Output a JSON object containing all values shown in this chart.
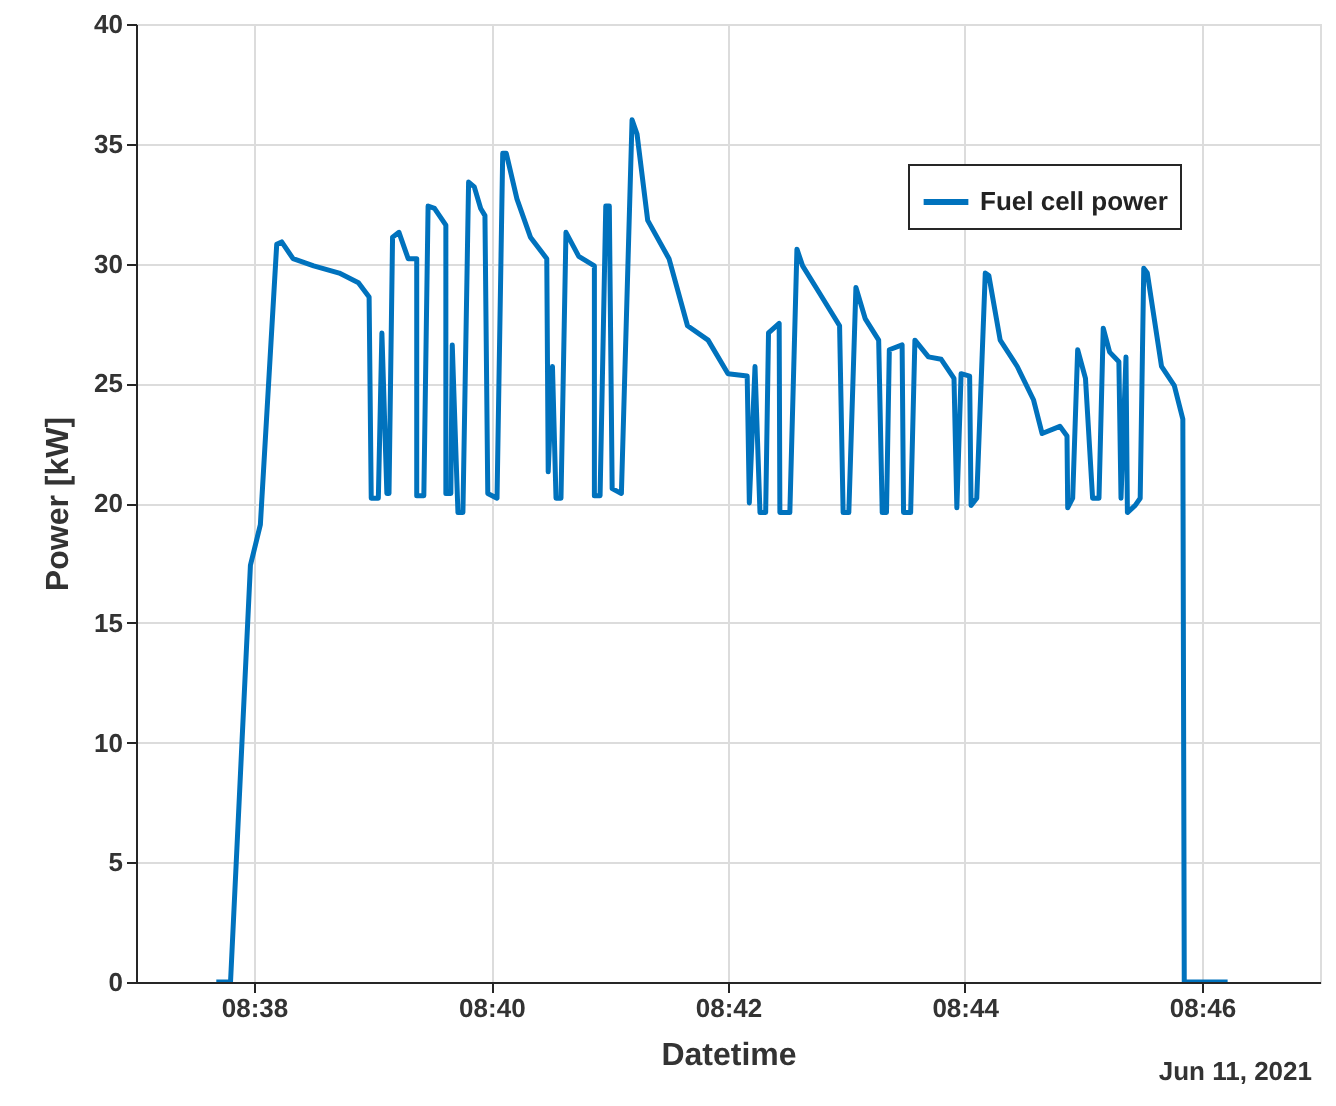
{
  "chart_data": {
    "type": "line",
    "xlabel": "Datetime",
    "ylabel": "Power [kW]",
    "annotations": [
      "Jun 11, 2021"
    ],
    "xlim": [
      8.6167,
      8.7833
    ],
    "xticks": [
      {
        "value": 8.6333,
        "label": "08:38"
      },
      {
        "value": 8.6667,
        "label": "08:40"
      },
      {
        "value": 8.7,
        "label": "08:42"
      },
      {
        "value": 8.7333,
        "label": "08:44"
      },
      {
        "value": 8.7667,
        "label": "08:46"
      }
    ],
    "ylim": [
      0,
      40
    ],
    "yticks": [
      0,
      5,
      10,
      15,
      20,
      25,
      30,
      35,
      40
    ],
    "grid": true,
    "legend": "top right",
    "series": [
      {
        "name": "Fuel cell power",
        "color": "#0072bd",
        "x": [
          8.628,
          8.63,
          8.6328,
          8.6342,
          8.6365,
          8.6372,
          8.6388,
          8.6417,
          8.6453,
          8.648,
          8.6495,
          8.6498,
          8.6508,
          8.6513,
          8.652,
          8.6523,
          8.6528,
          8.6537,
          8.655,
          8.6562,
          8.6562,
          8.6572,
          8.6578,
          8.6587,
          8.6603,
          8.6603,
          8.661,
          8.6612,
          8.662,
          8.6627,
          8.6635,
          8.6643,
          8.6652,
          8.6658,
          8.6662,
          8.6675,
          8.6683,
          8.6688,
          8.6703,
          8.6722,
          8.6745,
          8.6747,
          8.6753,
          8.6758,
          8.6765,
          8.6772,
          8.679,
          8.6812,
          8.6812,
          8.682,
          8.6828,
          8.6833,
          8.6837,
          8.685,
          8.6865,
          8.6872,
          8.6887,
          8.6917,
          8.6943,
          8.6972,
          8.7,
          8.7027,
          8.703,
          8.7038,
          8.7045,
          8.7053,
          8.7057,
          8.7072,
          8.7073,
          8.7087,
          8.7097,
          8.7105,
          8.7128,
          8.7157,
          8.7162,
          8.717,
          8.718,
          8.7193,
          8.7212,
          8.7217,
          8.7223,
          8.7227,
          8.7245,
          8.7247,
          8.7257,
          8.7263,
          8.7282,
          8.73,
          8.7318,
          8.7322,
          8.7328,
          8.734,
          8.7342,
          8.735,
          8.7362,
          8.7367,
          8.7383,
          8.7407,
          8.743,
          8.7442,
          8.7467,
          8.7477,
          8.7478,
          8.7485,
          8.7492,
          8.7503,
          8.7513,
          8.7522,
          8.7528,
          8.7537,
          8.755,
          8.7553,
          8.756,
          8.7562,
          8.7573,
          8.758,
          8.7585,
          8.759,
          8.761,
          8.7628,
          8.764,
          8.7642,
          8.7703
        ],
        "values": [
          0,
          0,
          17.4,
          19.1,
          30.8,
          30.9,
          30.2,
          29.9,
          29.6,
          29.2,
          28.6,
          20.2,
          20.2,
          27.1,
          20.4,
          20.4,
          31.1,
          31.3,
          30.2,
          30.2,
          20.3,
          20.3,
          32.4,
          32.3,
          31.6,
          20.4,
          20.4,
          26.6,
          19.6,
          19.6,
          33.4,
          33.2,
          32.3,
          32.0,
          20.4,
          20.2,
          34.6,
          34.6,
          32.7,
          31.1,
          30.2,
          21.3,
          25.7,
          20.2,
          20.2,
          31.3,
          30.3,
          29.9,
          20.3,
          20.3,
          32.4,
          32.4,
          20.6,
          20.4,
          36.0,
          35.4,
          31.8,
          30.2,
          27.4,
          26.8,
          25.4,
          25.3,
          20.0,
          25.7,
          19.6,
          19.6,
          27.1,
          27.5,
          19.6,
          19.6,
          30.6,
          29.9,
          28.8,
          27.4,
          19.6,
          19.6,
          29.0,
          27.7,
          26.8,
          19.6,
          19.6,
          26.4,
          26.6,
          19.6,
          19.6,
          26.8,
          26.1,
          26.0,
          25.2,
          19.8,
          25.4,
          25.3,
          19.9,
          20.2,
          29.6,
          29.5,
          26.8,
          25.7,
          24.3,
          22.9,
          23.2,
          22.8,
          19.8,
          20.2,
          26.4,
          25.2,
          20.2,
          20.2,
          27.3,
          26.3,
          25.9,
          20.2,
          26.1,
          19.6,
          19.9,
          20.2,
          29.8,
          29.6,
          25.7,
          24.9,
          23.5,
          0,
          0
        ]
      }
    ]
  }
}
